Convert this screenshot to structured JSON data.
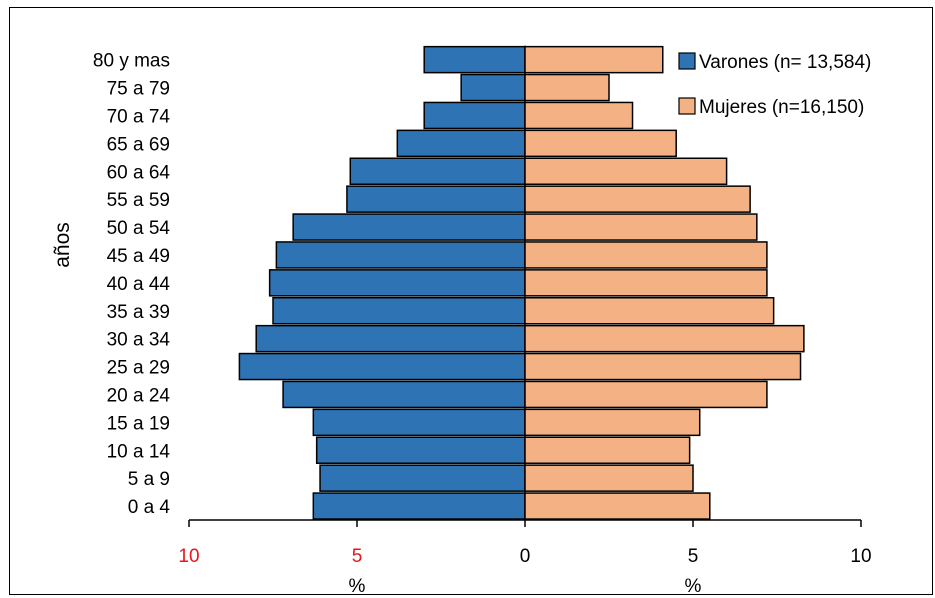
{
  "chart_data": {
    "type": "bar",
    "orientation": "horizontal",
    "layout": "population-pyramid",
    "ylabel": "años",
    "xlabel_left": "%",
    "xlabel_right": "%",
    "categories": [
      "0 a 4",
      "5 a 9",
      "10 a 14",
      "15 a 19",
      "20 a 24",
      "25 a 29",
      "30 a 34",
      "35 a 39",
      "40 a 44",
      "45 a 49",
      "50 a 54",
      "55 a 59",
      "60 a 64",
      "65 a 69",
      "70 a 74",
      "75 a 79",
      "80 y mas"
    ],
    "series": [
      {
        "name": "Varones (n= 13,584)",
        "side": "left",
        "color": "#2e74b5",
        "values": [
          6.3,
          6.1,
          6.2,
          6.3,
          7.2,
          8.5,
          8.0,
          7.5,
          7.6,
          7.4,
          6.9,
          5.3,
          5.2,
          3.8,
          3.0,
          1.9,
          3.0
        ]
      },
      {
        "name": "Mujeres (n=16,150)",
        "side": "right",
        "color": "#f4b183",
        "values": [
          5.5,
          5.0,
          4.9,
          5.2,
          7.2,
          8.2,
          8.3,
          7.4,
          7.2,
          7.2,
          6.9,
          6.7,
          6.0,
          4.5,
          3.2,
          2.5,
          4.1
        ]
      }
    ],
    "xlim_left": [
      10,
      0
    ],
    "xlim_right": [
      0,
      10
    ],
    "xticks_left": [
      "10",
      "5",
      "0"
    ],
    "xticks_right": [
      "5",
      "10"
    ],
    "xtick_left_colors": {
      "10": "#e8141b",
      "5": "#e8141b",
      "0": "#000000"
    },
    "legend_position": "top-right",
    "grid": false
  }
}
